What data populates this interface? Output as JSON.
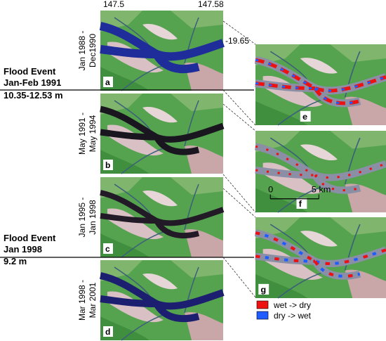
{
  "coordinates": {
    "lon": [
      "147.5",
      "147.58"
    ],
    "lat": "-19.65"
  },
  "panels": [
    {
      "letter": "a",
      "period": [
        "Jan 1988 -",
        "Dec1990"
      ]
    },
    {
      "letter": "b",
      "period": [
        "May 1991 -",
        "May 1994"
      ]
    },
    {
      "letter": "c",
      "period": [
        "Jan 1995 -",
        "Jan 1998"
      ]
    },
    {
      "letter": "d",
      "period": [
        "Mar 1998 -",
        "Mar 2001"
      ]
    }
  ],
  "events": [
    {
      "title": "Flood Event",
      "date": "Jan-Feb 1991",
      "level": "10.35-12.53 m"
    },
    {
      "title": "Flood Event",
      "date": "Jan 1998",
      "level": "9.2 m"
    }
  ],
  "change_panels": [
    "e",
    "f",
    "g"
  ],
  "scale_bar": {
    "start": "0",
    "end": "5 km"
  },
  "legend": [
    {
      "label": "wet -> dry",
      "color": "#ee1111"
    },
    {
      "label": "dry -> wet",
      "color": "#1f5cff"
    }
  ]
}
